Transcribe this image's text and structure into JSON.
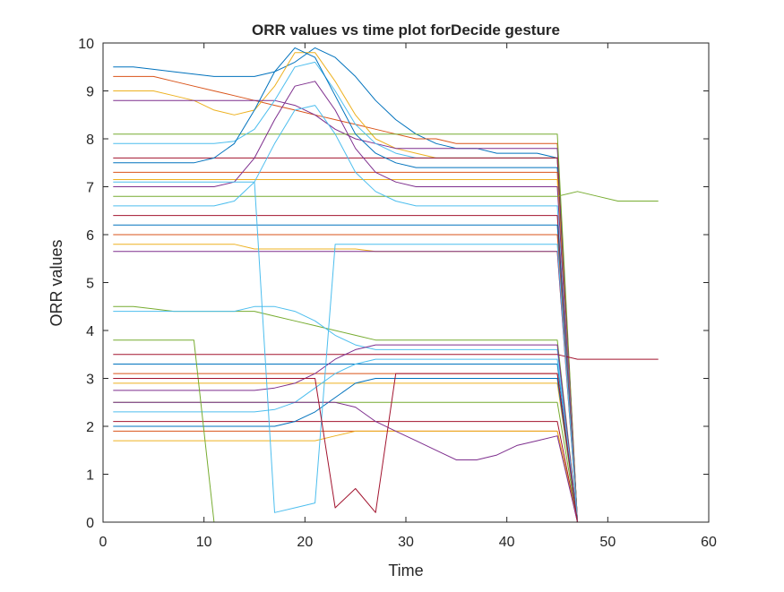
{
  "chart_data": {
    "type": "line",
    "title": "ORR values vs time plot forDecide gesture",
    "xlabel": "Time",
    "ylabel": "ORR values",
    "xlim": [
      0,
      60
    ],
    "ylim": [
      0,
      10
    ],
    "xticks": [
      0,
      10,
      20,
      30,
      40,
      50,
      60
    ],
    "yticks": [
      0,
      1,
      2,
      3,
      4,
      5,
      6,
      7,
      8,
      9,
      10
    ],
    "grid": false,
    "legend": "none",
    "palette": [
      "#0072BD",
      "#D95319",
      "#EDB120",
      "#7E2F8E",
      "#77AC30",
      "#4DBEEE",
      "#A2142F"
    ],
    "x": [
      1,
      3,
      5,
      7,
      9,
      11,
      13,
      15,
      17,
      19,
      21,
      23,
      25,
      27,
      29,
      31,
      33,
      35,
      37,
      39,
      41,
      43,
      45,
      47,
      49,
      51,
      53,
      55
    ],
    "series": [
      {
        "values": [
          9.5,
          9.5,
          9.45,
          9.4,
          9.35,
          9.3,
          9.3,
          9.3,
          9.4,
          9.6,
          9.9,
          9.7,
          9.3,
          8.8,
          8.4,
          8.1,
          7.9,
          7.8,
          7.8,
          7.7,
          7.7,
          7.7,
          7.6,
          0,
          0,
          0,
          0,
          0
        ]
      },
      {
        "values": [
          9.3,
          9.3,
          9.3,
          9.2,
          9.1,
          9.0,
          8.9,
          8.8,
          8.7,
          8.6,
          8.5,
          8.4,
          8.3,
          8.2,
          8.1,
          8.0,
          8.0,
          7.9,
          7.9,
          7.9,
          7.9,
          7.9,
          7.9,
          0,
          0,
          0,
          0,
          0
        ]
      },
      {
        "values": [
          9.0,
          9.0,
          9.0,
          8.9,
          8.8,
          8.6,
          8.5,
          8.6,
          9.1,
          9.8,
          9.8,
          9.2,
          8.5,
          8.0,
          7.8,
          7.7,
          7.6,
          7.6,
          7.6,
          7.6,
          7.6,
          7.6,
          7.6,
          0,
          0,
          0,
          0,
          0
        ]
      },
      {
        "values": [
          8.8,
          8.8,
          8.8,
          8.8,
          8.8,
          8.8,
          8.8,
          8.8,
          8.8,
          8.7,
          8.5,
          8.2,
          8.0,
          7.9,
          7.8,
          7.8,
          7.8,
          7.8,
          7.8,
          7.8,
          7.8,
          7.8,
          7.8,
          0,
          0,
          0,
          0,
          0
        ]
      },
      {
        "values": [
          8.1,
          8.1,
          8.1,
          8.1,
          8.1,
          8.1,
          8.1,
          8.1,
          8.1,
          8.1,
          8.1,
          8.1,
          8.1,
          8.1,
          8.1,
          8.1,
          8.1,
          8.1,
          8.1,
          8.1,
          8.1,
          8.1,
          8.1,
          0,
          0,
          0,
          0,
          0
        ]
      },
      {
        "values": [
          7.9,
          7.9,
          7.9,
          7.9,
          7.9,
          7.9,
          7.95,
          8.2,
          8.8,
          9.5,
          9.6,
          9.0,
          8.3,
          7.9,
          7.7,
          7.6,
          7.6,
          7.6,
          7.6,
          7.6,
          7.6,
          7.6,
          7.6,
          0,
          0,
          0,
          0,
          0
        ]
      },
      {
        "values": [
          7.6,
          7.6,
          7.6,
          7.6,
          7.6,
          7.6,
          7.6,
          7.6,
          7.6,
          7.6,
          7.6,
          7.6,
          7.6,
          7.6,
          7.6,
          7.6,
          7.6,
          7.6,
          7.6,
          7.6,
          7.6,
          7.6,
          7.6,
          0,
          0,
          0,
          0,
          0
        ]
      },
      {
        "values": [
          7.5,
          7.5,
          7.5,
          7.5,
          7.5,
          7.6,
          7.9,
          8.6,
          9.4,
          9.9,
          9.7,
          8.9,
          8.1,
          7.7,
          7.5,
          7.4,
          7.4,
          7.4,
          7.4,
          7.4,
          7.4,
          7.4,
          7.4,
          0,
          0,
          0,
          0,
          0
        ]
      },
      {
        "values": [
          7.3,
          7.3,
          7.3,
          7.3,
          7.3,
          7.3,
          7.3,
          7.3,
          7.3,
          7.3,
          7.3,
          7.3,
          7.3,
          7.3,
          7.3,
          7.3,
          7.3,
          7.3,
          7.3,
          7.3,
          7.3,
          7.3,
          7.3,
          0,
          0,
          0,
          0,
          0
        ]
      },
      {
        "values": [
          7.15,
          7.15,
          7.15,
          7.15,
          7.15,
          7.15,
          7.15,
          7.15,
          7.15,
          7.15,
          7.15,
          7.15,
          7.15,
          7.15,
          7.15,
          7.15,
          7.15,
          7.15,
          7.15,
          7.15,
          7.15,
          7.15,
          7.15,
          0,
          0,
          0,
          0,
          0
        ]
      },
      {
        "values": [
          7.0,
          7.0,
          7.0,
          7.0,
          7.0,
          7.0,
          7.1,
          7.6,
          8.4,
          9.1,
          9.2,
          8.6,
          7.8,
          7.3,
          7.1,
          7.0,
          7.0,
          7.0,
          7.0,
          7.0,
          7.0,
          7.0,
          7.0,
          0,
          0,
          0,
          0,
          0
        ]
      },
      {
        "values": [
          6.8,
          6.8,
          6.8,
          6.8,
          6.8,
          6.8,
          6.8,
          6.8,
          6.8,
          6.8,
          6.8,
          6.8,
          6.8,
          6.8,
          6.8,
          6.8,
          6.8,
          6.8,
          6.8,
          6.8,
          6.8,
          6.8,
          6.8,
          6.9,
          6.8,
          6.7,
          6.7,
          6.7
        ]
      },
      {
        "values": [
          6.6,
          6.6,
          6.6,
          6.6,
          6.6,
          6.6,
          6.7,
          7.1,
          7.9,
          8.6,
          8.7,
          8.1,
          7.3,
          6.9,
          6.7,
          6.6,
          6.6,
          6.6,
          6.6,
          6.6,
          6.6,
          6.6,
          6.6,
          0,
          0,
          0,
          0,
          0
        ]
      },
      {
        "values": [
          6.4,
          6.4,
          6.4,
          6.4,
          6.4,
          6.4,
          6.4,
          6.4,
          6.4,
          6.4,
          6.4,
          6.4,
          6.4,
          6.4,
          6.4,
          6.4,
          6.4,
          6.4,
          6.4,
          6.4,
          6.4,
          6.4,
          6.4,
          0,
          0,
          0,
          0,
          0
        ]
      },
      {
        "values": [
          6.2,
          6.2,
          6.2,
          6.2,
          6.2,
          6.2,
          6.2,
          6.2,
          6.2,
          6.2,
          6.2,
          6.2,
          6.2,
          6.2,
          6.2,
          6.2,
          6.2,
          6.2,
          6.2,
          6.2,
          6.2,
          6.2,
          6.2,
          0,
          0,
          0,
          0,
          0
        ]
      },
      {
        "values": [
          6.0,
          6.0,
          6.0,
          6.0,
          6.0,
          6.0,
          6.0,
          6.0,
          6.0,
          6.0,
          6.0,
          6.0,
          6.0,
          6.0,
          6.0,
          6.0,
          6.0,
          6.0,
          6.0,
          6.0,
          6.0,
          6.0,
          6.0,
          0,
          0,
          0,
          0,
          0
        ]
      },
      {
        "values": [
          5.8,
          5.8,
          5.8,
          5.8,
          5.8,
          5.8,
          5.8,
          5.7,
          5.7,
          5.7,
          5.7,
          5.7,
          5.7,
          5.65,
          5.65,
          5.65,
          5.65,
          5.65,
          5.65,
          5.65,
          5.65,
          5.65,
          5.65,
          0,
          0,
          0,
          0,
          0
        ]
      },
      {
        "values": [
          5.65,
          5.65,
          5.65,
          5.65,
          5.65,
          5.65,
          5.65,
          5.65,
          5.65,
          5.65,
          5.65,
          5.65,
          5.65,
          5.65,
          5.65,
          5.65,
          5.65,
          5.65,
          5.65,
          5.65,
          5.65,
          5.65,
          5.65,
          0,
          0,
          0,
          0,
          0
        ]
      },
      {
        "values": [
          4.5,
          4.5,
          4.45,
          4.4,
          4.4,
          4.4,
          4.4,
          4.4,
          4.3,
          4.2,
          4.1,
          4.0,
          3.9,
          3.8,
          3.8,
          3.8,
          3.8,
          3.8,
          3.8,
          3.8,
          3.8,
          3.8,
          3.8,
          0,
          0,
          0,
          0,
          0
        ]
      },
      {
        "values": [
          4.4,
          4.4,
          4.4,
          4.4,
          4.4,
          4.4,
          4.4,
          4.5,
          4.5,
          4.4,
          4.2,
          3.9,
          3.7,
          3.6,
          3.6,
          3.6,
          3.6,
          3.6,
          3.6,
          3.6,
          3.6,
          3.6,
          3.6,
          0,
          0,
          0,
          0,
          0
        ]
      },
      {
        "values": [
          3.5,
          3.5,
          3.5,
          3.5,
          3.5,
          3.5,
          3.5,
          3.5,
          3.5,
          3.5,
          3.5,
          3.5,
          3.5,
          3.5,
          3.5,
          3.5,
          3.5,
          3.5,
          3.5,
          3.5,
          3.5,
          3.5,
          3.5,
          3.4,
          3.4,
          3.4,
          3.4,
          3.4
        ]
      },
      {
        "values": [
          3.3,
          3.3,
          3.3,
          3.3,
          3.3,
          3.3,
          3.3,
          3.3,
          3.3,
          3.3,
          3.3,
          3.3,
          3.3,
          3.3,
          3.3,
          3.3,
          3.3,
          3.3,
          3.3,
          3.3,
          3.3,
          3.3,
          3.3,
          0,
          0,
          0,
          0,
          0
        ]
      },
      {
        "values": [
          3.1,
          3.1,
          3.1,
          3.1,
          3.1,
          3.1,
          3.1,
          3.1,
          3.1,
          3.1,
          3.1,
          3.1,
          3.1,
          3.1,
          3.1,
          3.1,
          3.1,
          3.1,
          3.1,
          3.1,
          3.1,
          3.1,
          3.1,
          0,
          0,
          0,
          0,
          0
        ]
      },
      {
        "values": [
          2.9,
          2.9,
          2.9,
          2.9,
          2.9,
          2.9,
          2.9,
          2.9,
          2.9,
          2.9,
          2.9,
          2.9,
          2.9,
          2.9,
          2.9,
          2.9,
          2.9,
          2.9,
          2.9,
          2.9,
          2.9,
          2.9,
          2.9,
          0,
          0,
          0,
          0,
          0
        ]
      },
      {
        "values": [
          2.75,
          2.75,
          2.75,
          2.75,
          2.75,
          2.75,
          2.75,
          2.75,
          2.8,
          2.9,
          3.1,
          3.4,
          3.6,
          3.7,
          3.7,
          3.7,
          3.7,
          3.7,
          3.7,
          3.7,
          3.7,
          3.7,
          3.7,
          0,
          0,
          0,
          0,
          0
        ]
      },
      {
        "values": [
          2.5,
          2.5,
          2.5,
          2.5,
          2.5,
          2.5,
          2.5,
          2.5,
          2.5,
          2.5,
          2.5,
          2.5,
          2.5,
          2.5,
          2.5,
          2.5,
          2.5,
          2.5,
          2.5,
          2.5,
          2.5,
          2.5,
          2.5,
          0,
          0,
          0,
          0,
          0
        ]
      },
      {
        "values": [
          2.3,
          2.3,
          2.3,
          2.3,
          2.3,
          2.3,
          2.3,
          2.3,
          2.35,
          2.5,
          2.8,
          3.1,
          3.3,
          3.4,
          3.4,
          3.4,
          3.4,
          3.4,
          3.4,
          3.4,
          3.4,
          3.4,
          3.4,
          0,
          0,
          0,
          0,
          0
        ]
      },
      {
        "values": [
          2.1,
          2.1,
          2.1,
          2.1,
          2.1,
          2.1,
          2.1,
          2.1,
          2.1,
          2.1,
          2.1,
          2.1,
          2.1,
          2.1,
          2.1,
          2.1,
          2.1,
          2.1,
          2.1,
          2.1,
          2.1,
          2.1,
          2.1,
          0,
          0,
          0,
          0,
          0
        ]
      },
      {
        "values": [
          2.0,
          2.0,
          2.0,
          2.0,
          2.0,
          2.0,
          2.0,
          2.0,
          2.0,
          2.1,
          2.3,
          2.6,
          2.9,
          3.0,
          3.0,
          3.0,
          3.0,
          3.0,
          3.0,
          3.0,
          3.0,
          3.0,
          3.0,
          0,
          0,
          0,
          0,
          0
        ]
      },
      {
        "values": [
          1.9,
          1.9,
          1.9,
          1.9,
          1.9,
          1.9,
          1.9,
          1.9,
          1.9,
          1.9,
          1.9,
          1.9,
          1.9,
          1.9,
          1.9,
          1.9,
          1.9,
          1.9,
          1.9,
          1.9,
          1.9,
          1.9,
          1.9,
          0,
          0,
          0,
          0,
          0
        ]
      },
      {
        "values": [
          1.7,
          1.7,
          1.7,
          1.7,
          1.7,
          1.7,
          1.7,
          1.7,
          1.7,
          1.7,
          1.7,
          1.8,
          1.9,
          1.9,
          1.9,
          1.9,
          1.9,
          1.9,
          1.9,
          1.9,
          1.9,
          1.9,
          1.9,
          0,
          0,
          0,
          0,
          0
        ]
      },
      {
        "values": [
          2.5,
          2.5,
          2.5,
          2.5,
          2.5,
          2.5,
          2.5,
          2.5,
          2.5,
          2.5,
          2.5,
          2.5,
          2.4,
          2.1,
          1.9,
          1.7,
          1.5,
          1.3,
          1.3,
          1.4,
          1.6,
          1.7,
          1.8,
          0,
          0,
          0,
          0,
          0
        ]
      },
      {
        "values": [
          3.8,
          3.8,
          3.8,
          3.8,
          3.8,
          0,
          0,
          0,
          0,
          0,
          0,
          0,
          0,
          0,
          0,
          0,
          0,
          0,
          0,
          0,
          0,
          0,
          0,
          0,
          0,
          0,
          0,
          0
        ]
      },
      {
        "values": [
          7.1,
          7.1,
          7.1,
          7.1,
          7.1,
          7.1,
          7.1,
          7.1,
          0.2,
          0.3,
          0.4,
          5.8,
          5.8,
          5.8,
          5.8,
          5.8,
          5.8,
          5.8,
          5.8,
          5.8,
          5.8,
          5.8,
          5.8,
          0,
          0,
          0,
          0,
          0
        ]
      },
      {
        "values": [
          3.0,
          3.0,
          3.0,
          3.0,
          3.0,
          3.0,
          3.0,
          3.0,
          3.0,
          3.0,
          3.0,
          0.3,
          0.7,
          0.2,
          3.1,
          3.1,
          3.1,
          3.1,
          3.1,
          3.1,
          3.1,
          3.1,
          3.1,
          0,
          0,
          0,
          0,
          0
        ]
      }
    ]
  }
}
